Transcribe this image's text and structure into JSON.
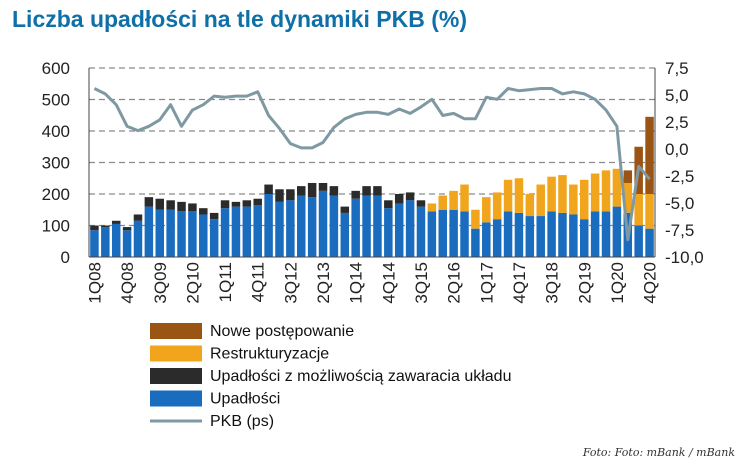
{
  "title": "Liczba upadłości na tle dynamiki PKB (%)",
  "source": "Foto: Foto: mBank / mBank",
  "colors": {
    "nowe": "#9a5413",
    "restrukturyzacje": "#f0a51c",
    "uklad": "#2b2b2b",
    "upadlosci": "#1a6cbf",
    "pkb": "#7f99a3",
    "grid": "#8a8a8a"
  },
  "chart_data": {
    "type": "bar",
    "stacked": true,
    "x": [
      "1Q08",
      "2Q08",
      "3Q08",
      "4Q08",
      "1Q09",
      "2Q09",
      "3Q09",
      "4Q09",
      "1Q10",
      "2Q10",
      "3Q10",
      "4Q10",
      "1Q11",
      "2Q11",
      "3Q11",
      "4Q11",
      "1Q12",
      "2Q12",
      "3Q12",
      "4Q12",
      "1Q13",
      "2Q13",
      "3Q13",
      "4Q13",
      "1Q14",
      "2Q14",
      "3Q14",
      "4Q14",
      "1Q15",
      "2Q15",
      "3Q15",
      "4Q15",
      "1Q16",
      "2Q16",
      "3Q16",
      "4Q16",
      "1Q17",
      "2Q17",
      "3Q17",
      "4Q17",
      "1Q18",
      "2Q18",
      "3Q18",
      "4Q18",
      "1Q19",
      "2Q19",
      "3Q19",
      "4Q19",
      "1Q20",
      "2Q20",
      "3Q20",
      "4Q20"
    ],
    "x_tick_labels": [
      "1Q08",
      "4Q08",
      "3Q09",
      "2Q10",
      "1Q11",
      "4Q11",
      "3Q12",
      "2Q13",
      "1Q14",
      "4Q14",
      "3Q15",
      "2Q16",
      "1Q17",
      "4Q17",
      "3Q18",
      "2Q19",
      "1Q20",
      "4Q20"
    ],
    "series": [
      {
        "name": "Upadłości",
        "values": [
          85,
          95,
          105,
          85,
          115,
          160,
          150,
          150,
          145,
          145,
          135,
          120,
          155,
          160,
          160,
          165,
          200,
          175,
          180,
          195,
          190,
          210,
          195,
          140,
          185,
          195,
          195,
          155,
          170,
          180,
          160,
          145,
          150,
          150,
          145,
          90,
          110,
          120,
          145,
          140,
          130,
          130,
          145,
          140,
          135,
          120,
          145,
          145,
          160,
          140,
          100,
          90
        ]
      },
      {
        "name": "Upadłości z możliwością zawaracia układu",
        "values": [
          15,
          5,
          10,
          10,
          20,
          30,
          35,
          30,
          30,
          25,
          20,
          20,
          25,
          15,
          20,
          20,
          30,
          40,
          35,
          30,
          45,
          25,
          30,
          20,
          25,
          30,
          30,
          25,
          30,
          25,
          20,
          0,
          0,
          0,
          0,
          0,
          0,
          0,
          0,
          0,
          0,
          0,
          0,
          0,
          0,
          0,
          0,
          0,
          0,
          0,
          0,
          0
        ]
      },
      {
        "name": "Restrukturyzacje",
        "values": [
          0,
          0,
          0,
          0,
          0,
          0,
          0,
          0,
          0,
          0,
          0,
          0,
          0,
          0,
          0,
          0,
          0,
          0,
          0,
          0,
          0,
          0,
          0,
          0,
          0,
          0,
          0,
          0,
          0,
          0,
          0,
          25,
          45,
          60,
          85,
          60,
          80,
          85,
          100,
          110,
          70,
          100,
          110,
          120,
          95,
          125,
          120,
          130,
          120,
          95,
          100,
          110
        ]
      },
      {
        "name": "Nowe postępowanie",
        "values": [
          0,
          0,
          0,
          0,
          0,
          0,
          0,
          0,
          0,
          0,
          0,
          0,
          0,
          0,
          0,
          0,
          0,
          0,
          0,
          0,
          0,
          0,
          0,
          0,
          0,
          0,
          0,
          0,
          0,
          0,
          0,
          0,
          0,
          0,
          0,
          0,
          0,
          0,
          0,
          0,
          0,
          0,
          0,
          0,
          0,
          0,
          0,
          0,
          0,
          40,
          150,
          245
        ]
      },
      {
        "name": "PKB (ps)",
        "axis": "right",
        "type": "line",
        "values": [
          5.6,
          5.1,
          4.1,
          2.1,
          1.7,
          2.1,
          2.7,
          4.1,
          2.1,
          3.6,
          4.1,
          4.9,
          4.8,
          4.9,
          4.9,
          5.3,
          3.1,
          1.9,
          0.5,
          0.1,
          0.1,
          0.6,
          2.0,
          2.8,
          3.2,
          3.4,
          3.4,
          3.2,
          3.7,
          3.3,
          3.9,
          4.6,
          3.1,
          3.3,
          2.8,
          2.8,
          4.8,
          4.6,
          5.6,
          5.4,
          5.5,
          5.6,
          5.6,
          5.1,
          5.3,
          5.1,
          4.6,
          3.6,
          2.1,
          -8.4,
          -1.6,
          -2.8
        ]
      }
    ],
    "y_left": {
      "min": 0,
      "max": 600,
      "ticks": [
        "0",
        "100",
        "200",
        "300",
        "400",
        "500",
        "600"
      ]
    },
    "y_right": {
      "min": -10,
      "max": 7.5,
      "ticks": [
        "-10,0",
        "-7,5",
        "-5,0",
        "-2,5",
        "0,0",
        "2,5",
        "5,0",
        "7,5"
      ]
    },
    "grid": "dashed horizontal",
    "legend_position": "bottom"
  }
}
